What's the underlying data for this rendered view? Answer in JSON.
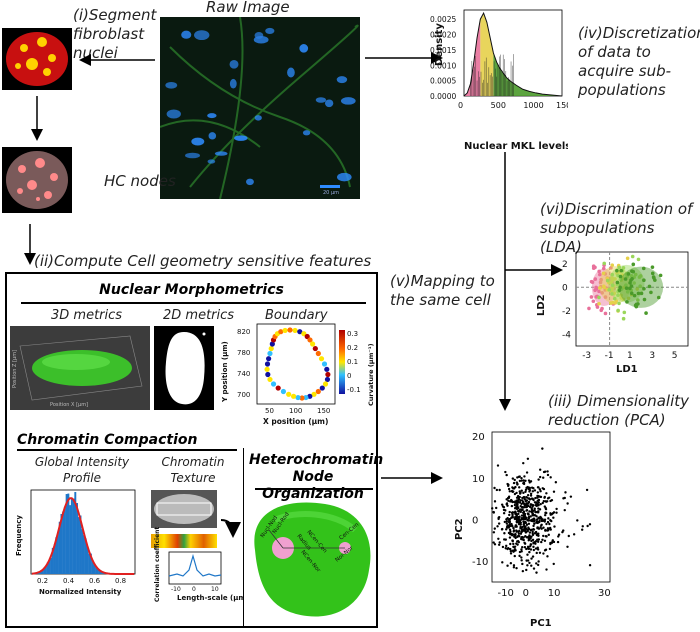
{
  "steps": {
    "raw_image": "Raw Image",
    "segment": "(i)Segment fibroblast nuclei",
    "hc_nodes": "HC nodes",
    "compute": "(ii)Compute Cell geometry sensitive features",
    "discretization": "(iv)Discretization of data to acquire sub-populations",
    "discrimination": "(vi)Discrimination of subpopulations (LDA)",
    "mapping": "(v)Mapping to the same cell",
    "pca": "(iii) Dimensionality reduction (PCA)"
  },
  "raw_image_scalebar": "20 μm",
  "nuclear_morphometrics": {
    "title": "Nuclear Morphometrics",
    "metrics_3d": "3D metrics",
    "metrics_2d": "2D metrics",
    "boundary": "Boundary",
    "axis_3d_y": "Position Y [μm]",
    "axis_3d_x": "Position X [μm]",
    "axis_3d_z": "Position Z [μm]"
  },
  "chromatin": {
    "title": "Chromatin Compaction",
    "global_intensity": "Global Intensity Profile",
    "texture": "Chromatin Texture",
    "hc_title": "Heterochromatin Node Organization"
  },
  "node_labels": [
    "Nucl-Nod",
    "Nucl-Rod",
    "Radius",
    "NCen-Cen",
    "NCen-Nor",
    "Cen-Cen",
    "Nor-Nor"
  ],
  "colors": {
    "nucleus_green": "#33c21a",
    "hist_blue": "#1f77c8",
    "fit_red": "#e02020",
    "density_yellow": "#e6d04a",
    "density_pink": "#e8709a",
    "density_green": "#4a9a2a"
  },
  "chart_data": [
    {
      "type": "area",
      "ylabel": "Density",
      "xlabel": "Nuclear MKL levels",
      "xlim": [
        0,
        1500
      ],
      "ylim": [
        0,
        0.0028
      ],
      "x_ticks": [
        "0",
        "500",
        "1000",
        "1500"
      ],
      "y_ticks": [
        "0.0000",
        "0.0005",
        "0.0010",
        "0.0015",
        "0.0020",
        "0.0025"
      ],
      "x": [
        0,
        50,
        100,
        150,
        200,
        250,
        300,
        350,
        400,
        450,
        500,
        550,
        600,
        650,
        700,
        800,
        900,
        1000,
        1100,
        1200,
        1300,
        1400,
        1500
      ],
      "values": [
        0,
        0.0001,
        0.0004,
        0.0011,
        0.0019,
        0.0025,
        0.0027,
        0.0024,
        0.0019,
        0.0014,
        0.0011,
        0.0009,
        0.00075,
        0.0006,
        0.0005,
        0.00035,
        0.00022,
        0.00015,
        0.0001,
        6e-05,
        4e-05,
        2e-05,
        0
      ]
    },
    {
      "type": "scatter",
      "xlabel": "LD1",
      "ylabel": "LD2",
      "xlim": [
        -4,
        6
      ],
      "ylim": [
        -5,
        3
      ],
      "x_ticks": [
        "-3",
        "-1",
        "1",
        "3",
        "5"
      ],
      "y_ticks": [
        "2",
        "0",
        "-2",
        "-4"
      ],
      "series": [
        {
          "color": "#e8709a",
          "center": [
            -1.5,
            0
          ],
          "spread": [
            0.6,
            1.0
          ]
        },
        {
          "color": "#e6d04a",
          "center": [
            -0.5,
            0.2
          ],
          "spread": [
            0.8,
            1.0
          ]
        },
        {
          "color": "#9ad65a",
          "center": [
            0.5,
            0.3
          ],
          "spread": [
            0.9,
            1.0
          ]
        },
        {
          "color": "#4a9a2a",
          "center": [
            1.8,
            0
          ],
          "spread": [
            1.1,
            1.1
          ]
        }
      ]
    },
    {
      "type": "scatter",
      "xlabel": "PC1",
      "ylabel": "PC2",
      "xlim": [
        -15,
        32
      ],
      "ylim": [
        -15,
        21
      ],
      "x_ticks": [
        "-10",
        "0",
        "10",
        "20",
        "30"
      ],
      "y_ticks": [
        "20",
        "10",
        "0",
        "-10"
      ],
      "series": [
        {
          "color": "#000000",
          "center": [
            -2,
            0
          ],
          "spread": [
            5,
            5
          ]
        }
      ]
    },
    {
      "type": "bar",
      "xlabel": "Normalized Intensity",
      "ylabel": "Frequency",
      "x_ticks": [
        "0.2",
        "0.4",
        "0.6",
        "0.8"
      ],
      "xlim": [
        0.1,
        0.9
      ]
    },
    {
      "type": "line",
      "xlabel": "Length-scale (μm)",
      "ylabel": "Correlation coefficient",
      "x_ticks": [
        "-10",
        "0",
        "10"
      ]
    },
    {
      "type": "line",
      "xlabel": "X position (μm)",
      "ylabel": "Y position (μm)",
      "colorbar_label": "Curvature (μm⁻¹)",
      "x_ticks": [
        "50",
        "100",
        "150"
      ],
      "y_ticks": [
        "820",
        "780",
        "740",
        "700"
      ],
      "colorbar_ticks": [
        "0.3",
        "0.2",
        "0.1",
        "0",
        "-0.1"
      ]
    }
  ]
}
